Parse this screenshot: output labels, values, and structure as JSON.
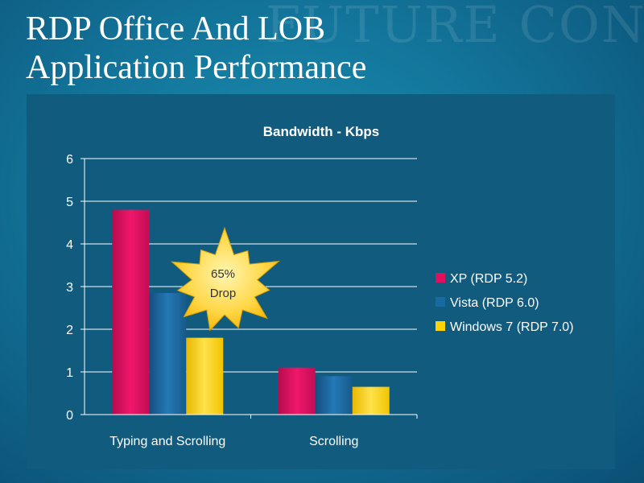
{
  "slide": {
    "watermark": "FUTURE CONCEPT",
    "title_line1": "RDP Office And LOB",
    "title_line2": "Application Performance"
  },
  "colors": {
    "series": [
      "#e0105f",
      "#1a6aa2",
      "#ffd400"
    ]
  },
  "chart_data": {
    "type": "bar",
    "title": "Bandwidth - Kbps",
    "categories": [
      "Typing and Scrolling",
      "Scrolling"
    ],
    "series": [
      {
        "name": "XP (RDP 5.2)",
        "values": [
          4.8,
          1.1
        ]
      },
      {
        "name": "Vista (RDP 6.0)",
        "values": [
          2.85,
          0.9
        ]
      },
      {
        "name": "Windows 7 (RDP 7.0)",
        "values": [
          1.8,
          0.65
        ]
      }
    ],
    "ylim": [
      0,
      6
    ],
    "yticks": [
      "0",
      "1",
      "2",
      "3",
      "4",
      "5",
      "6"
    ],
    "grid": true,
    "legend": "right",
    "annotation": {
      "line1": "65%",
      "line2": "Drop"
    }
  }
}
